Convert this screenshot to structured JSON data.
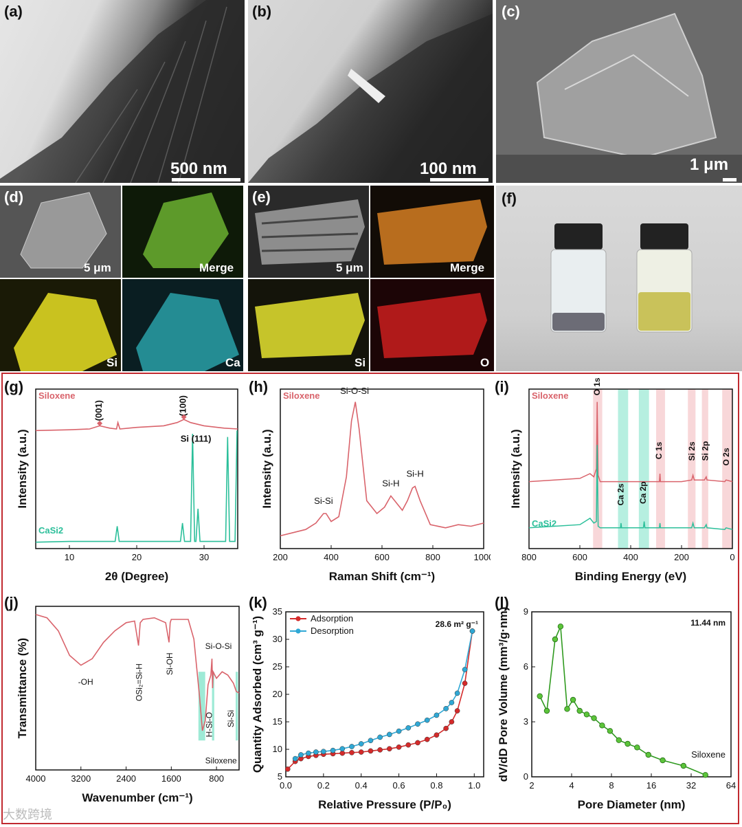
{
  "panels": {
    "a": {
      "label": "(a)",
      "scale": "500 nm"
    },
    "b": {
      "label": "(b)",
      "scale": "100 nm"
    },
    "c": {
      "label": "(c)",
      "scale": "1 μm"
    },
    "d": {
      "label": "(d)",
      "scale": "5 μm",
      "merge": "Merge",
      "si": "Si",
      "ca": "Ca"
    },
    "e": {
      "label": "(e)",
      "scale": "5 μm",
      "merge": "Merge",
      "si": "Si",
      "o": "O"
    },
    "f": {
      "label": "(f)"
    }
  },
  "colors": {
    "siloxene": "#d9636b",
    "casi2": "#2bbf9a",
    "adsorption": "#d42a2a",
    "desorption": "#2fa8d5",
    "pore": "#2f9a1f",
    "band_red": "#f6c9cc",
    "band_teal": "#9eead6",
    "frame": "#c0292f"
  },
  "watermark": "大数跨境",
  "chart_data": [
    {
      "id": "g",
      "type": "line",
      "label": "(g)",
      "xlabel": "2θ (Degree)",
      "ylabel": "Intensity (a.u.)",
      "xlim": [
        5,
        35
      ],
      "xticks": [
        10,
        20,
        30
      ],
      "series": [
        {
          "name": "Siloxene",
          "x": [
            5,
            10,
            13,
            14.5,
            16,
            17,
            17.2,
            17.5,
            20,
            24,
            26,
            27,
            28,
            30,
            33,
            35
          ],
          "y": [
            0.74,
            0.745,
            0.75,
            0.77,
            0.755,
            0.75,
            0.79,
            0.75,
            0.76,
            0.77,
            0.79,
            0.81,
            0.79,
            0.77,
            0.755,
            0.75
          ]
        },
        {
          "name": "CaSi2",
          "x": [
            5,
            10,
            16.8,
            17.1,
            17.4,
            20,
            26.5,
            26.8,
            27.1,
            28,
            28.3,
            28.6,
            28.8,
            29.1,
            29.4,
            33.2,
            33.5,
            33.8,
            34.6,
            34.9
          ],
          "y": [
            0.04,
            0.045,
            0.045,
            0.14,
            0.045,
            0.045,
            0.045,
            0.16,
            0.045,
            0.045,
            0.72,
            0.045,
            0.045,
            0.25,
            0.045,
            0.045,
            0.7,
            0.045,
            0.045,
            0.74
          ]
        }
      ],
      "annotations": [
        {
          "text": "(001)"
        },
        {
          "text": "(100)"
        },
        {
          "text": "Si (111)"
        }
      ]
    },
    {
      "id": "h",
      "type": "line",
      "label": "(h)",
      "xlabel": "Raman Shift (cm⁻¹)",
      "ylabel": "Intensity (a.u.)",
      "xlim": [
        200,
        1000
      ],
      "xticks": [
        200,
        400,
        600,
        800,
        1000
      ],
      "series": [
        {
          "name": "Siloxene",
          "x": [
            200,
            250,
            300,
            340,
            370,
            380,
            400,
            430,
            460,
            480,
            495,
            510,
            540,
            580,
            610,
            635,
            650,
            680,
            700,
            720,
            730,
            750,
            790,
            850,
            900,
            950,
            1000
          ],
          "y": [
            0.08,
            0.1,
            0.12,
            0.16,
            0.22,
            0.22,
            0.17,
            0.2,
            0.45,
            0.8,
            0.92,
            0.75,
            0.3,
            0.22,
            0.26,
            0.33,
            0.3,
            0.24,
            0.3,
            0.38,
            0.39,
            0.3,
            0.15,
            0.13,
            0.15,
            0.14,
            0.16
          ]
        }
      ],
      "annotations": [
        {
          "text": "Si-O-Si"
        },
        {
          "text": "Si-Si"
        },
        {
          "text": "Si-H"
        },
        {
          "text": "Si-H"
        }
      ]
    },
    {
      "id": "i",
      "type": "line",
      "label": "(i)",
      "xlabel": "Binding Energy (eV)",
      "ylabel": "Intensity (a.u.)",
      "xlim": [
        800,
        0
      ],
      "xticks": [
        800,
        600,
        400,
        200,
        0
      ],
      "series": [
        {
          "name": "Siloxene",
          "x": [
            800,
            700,
            600,
            560,
            545,
            535,
            532,
            528,
            520,
            400,
            300,
            287,
            285,
            283,
            200,
            160,
            155,
            150,
            110,
            103,
            100,
            30,
            25,
            0
          ],
          "y": [
            0.42,
            0.43,
            0.44,
            0.47,
            0.45,
            0.5,
            0.92,
            0.46,
            0.42,
            0.42,
            0.42,
            0.42,
            0.47,
            0.42,
            0.42,
            0.43,
            0.46,
            0.43,
            0.43,
            0.45,
            0.43,
            0.42,
            0.43,
            0.42
          ]
        },
        {
          "name": "CaSi2",
          "x": [
            800,
            700,
            600,
            560,
            545,
            535,
            532,
            528,
            520,
            440,
            438,
            436,
            350,
            347,
            344,
            300,
            287,
            285,
            283,
            200,
            160,
            155,
            150,
            110,
            103,
            100,
            30,
            25,
            0
          ],
          "y": [
            0.13,
            0.14,
            0.15,
            0.19,
            0.16,
            0.17,
            0.65,
            0.14,
            0.13,
            0.13,
            0.16,
            0.13,
            0.13,
            0.17,
            0.13,
            0.13,
            0.13,
            0.16,
            0.13,
            0.13,
            0.13,
            0.16,
            0.13,
            0.13,
            0.15,
            0.13,
            0.12,
            0.13,
            0.12
          ]
        }
      ],
      "annotations": [
        {
          "text": "O 1s"
        },
        {
          "text": "C 1s"
        },
        {
          "text": "Si 2s"
        },
        {
          "text": "Si 2p"
        },
        {
          "text": "O 2s"
        },
        {
          "text": "Ca 2s"
        },
        {
          "text": "Ca 2p"
        }
      ]
    },
    {
      "id": "j",
      "type": "line",
      "label": "(j)",
      "xlabel": "Wavenumber (cm⁻¹)",
      "ylabel": "Transmittance (%)",
      "xlim": [
        4000,
        400
      ],
      "xticks": [
        4000,
        3200,
        2400,
        1600,
        800
      ],
      "series": [
        {
          "name": "Siloxene",
          "x": [
            4000,
            3800,
            3600,
            3400,
            3200,
            3000,
            2800,
            2600,
            2400,
            2250,
            2180,
            2150,
            2100,
            1900,
            1700,
            1640,
            1620,
            1600,
            1500,
            1300,
            1200,
            1100,
            1050,
            1000,
            950,
            900,
            880,
            870,
            860,
            800,
            700,
            600,
            500,
            450,
            400
          ],
          "y": [
            0.95,
            0.93,
            0.85,
            0.7,
            0.64,
            0.68,
            0.78,
            0.85,
            0.9,
            0.91,
            0.76,
            0.9,
            0.92,
            0.93,
            0.9,
            0.78,
            0.9,
            0.92,
            0.92,
            0.92,
            0.8,
            0.45,
            0.24,
            0.3,
            0.52,
            0.58,
            0.68,
            0.5,
            0.6,
            0.56,
            0.6,
            0.58,
            0.53,
            0.48,
            0.47
          ]
        }
      ],
      "annotations": [
        {
          "text": "-OH"
        },
        {
          "text": "OSi₂=Si-H"
        },
        {
          "text": "Si-OH"
        },
        {
          "text": "Si-O-Si"
        },
        {
          "text": "H-Si-O"
        },
        {
          "text": "Si-Si"
        },
        {
          "text": "Siloxene"
        }
      ]
    },
    {
      "id": "k",
      "type": "line",
      "label": "(k)",
      "xlabel": "Relative Pressure (P/P₀)",
      "ylabel": "Quantity Adsorbed (cm³ g⁻¹)",
      "xlim": [
        0,
        1.05
      ],
      "ylim": [
        5,
        35
      ],
      "xticks": [
        0,
        0.2,
        0.4,
        0.6,
        0.8,
        1.0
      ],
      "yticks": [
        5,
        10,
        15,
        20,
        25,
        30,
        35
      ],
      "note": "28.6 m² g⁻¹",
      "series": [
        {
          "name": "Adsorption",
          "x": [
            0.01,
            0.05,
            0.08,
            0.12,
            0.16,
            0.2,
            0.25,
            0.3,
            0.35,
            0.4,
            0.45,
            0.5,
            0.55,
            0.6,
            0.65,
            0.7,
            0.75,
            0.8,
            0.85,
            0.88,
            0.91,
            0.95,
            0.99
          ],
          "y": [
            6.4,
            7.8,
            8.3,
            8.7,
            8.9,
            9.1,
            9.2,
            9.3,
            9.4,
            9.5,
            9.7,
            9.9,
            10.1,
            10.4,
            10.8,
            11.2,
            11.8,
            12.6,
            13.8,
            15,
            17,
            22,
            31.5
          ]
        },
        {
          "name": "Desorption",
          "x": [
            0.99,
            0.95,
            0.91,
            0.88,
            0.85,
            0.8,
            0.75,
            0.7,
            0.65,
            0.6,
            0.55,
            0.5,
            0.45,
            0.4,
            0.35,
            0.3,
            0.25,
            0.2,
            0.16,
            0.12,
            0.08,
            0.05
          ],
          "y": [
            31.5,
            24.5,
            20.2,
            18.5,
            17.4,
            16.2,
            15.3,
            14.6,
            13.9,
            13.3,
            12.7,
            12.2,
            11.6,
            11,
            10.5,
            10.1,
            9.8,
            9.6,
            9.5,
            9.3,
            9.0,
            8.3
          ]
        }
      ]
    },
    {
      "id": "l",
      "type": "line",
      "label": "(l)",
      "xlabel": "Pore Diameter (nm)",
      "ylabel": "dV/dD Pore Volume (mm³/g·nm)",
      "xscale": "log2",
      "xlim": [
        2,
        64
      ],
      "ylim": [
        0,
        9
      ],
      "xticks": [
        2,
        4,
        8,
        16,
        32,
        64
      ],
      "yticks": [
        0,
        3,
        6,
        9
      ],
      "note": "11.44 nm",
      "series": [
        {
          "name": "Siloxene",
          "x": [
            2.3,
            2.6,
            3.0,
            3.3,
            3.7,
            4.1,
            4.6,
            5.2,
            5.9,
            6.8,
            7.8,
            9.1,
            10.6,
            12.5,
            15.2,
            19.5,
            28,
            41
          ],
          "y": [
            4.4,
            3.6,
            7.5,
            8.2,
            3.7,
            4.2,
            3.6,
            3.4,
            3.2,
            2.8,
            2.5,
            2.0,
            1.8,
            1.6,
            1.2,
            0.9,
            0.6,
            0.1
          ]
        }
      ]
    }
  ]
}
